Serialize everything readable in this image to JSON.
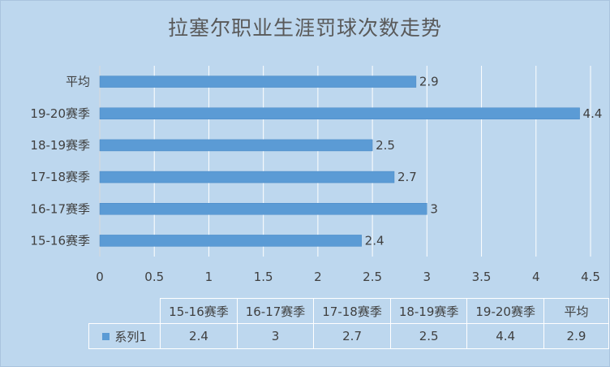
{
  "chart_data": {
    "type": "bar",
    "orientation": "horizontal",
    "title": "拉塞尔职业生涯罚球次数走势",
    "categories": [
      "15-16赛季",
      "16-17赛季",
      "17-18赛季",
      "18-19赛季",
      "19-20赛季",
      "平均"
    ],
    "series": [
      {
        "name": "系列1",
        "values": [
          2.4,
          3,
          2.7,
          2.5,
          4.4,
          2.9
        ],
        "color": "#5b9bd5"
      }
    ],
    "data_labels": [
      "2.4",
      "3",
      "2.7",
      "2.5",
      "4.4",
      "2.9"
    ],
    "xlim": [
      0,
      4.5
    ],
    "x_ticks": [
      "0",
      "0.5",
      "1",
      "1.5",
      "2",
      "2.5",
      "3",
      "3.5",
      "4",
      "4.5"
    ],
    "grid": true,
    "data_table": true,
    "background": "#bdd7ee",
    "gridline_color": "#ffffff"
  }
}
